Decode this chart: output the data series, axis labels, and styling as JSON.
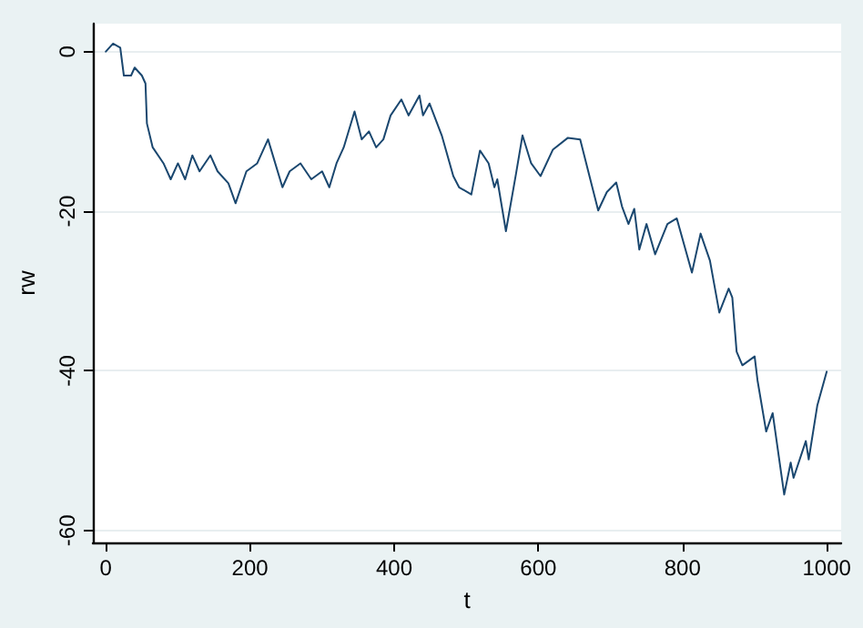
{
  "chart_data": {
    "type": "line",
    "xlabel": "t",
    "ylabel": "rw",
    "xlim": [
      -18,
      1020
    ],
    "ylim": [
      -61.5,
      3.5
    ],
    "xticks": [
      0,
      200,
      400,
      600,
      800,
      1000
    ],
    "yticks": [
      -60,
      -40,
      -20,
      0
    ],
    "grid": "y",
    "marker": "none",
    "line_style": "solid",
    "series": [
      {
        "color": "#1a476f",
        "x": [
          0,
          10,
          20,
          25,
          35,
          40,
          50,
          55,
          57,
          65,
          80,
          90,
          100,
          110,
          120,
          130,
          145,
          155,
          170,
          180,
          195,
          210,
          225,
          245,
          255,
          270,
          285,
          300,
          310,
          320,
          330,
          345,
          355,
          365,
          375,
          385,
          395,
          410,
          420,
          435,
          440,
          449,
          466,
          482,
          490,
          507,
          519,
          531,
          539,
          543,
          555,
          569,
          578,
          590,
          603,
          620,
          641,
          658,
          670,
          683,
          695,
          708,
          716,
          725,
          733,
          740,
          750,
          762,
          779,
          792,
          813,
          825,
          838,
          851,
          864,
          869,
          875,
          883,
          900,
          904,
          916,
          925,
          941,
          950,
          954,
          971,
          975,
          987,
          1000
        ],
        "values": [
          0,
          1,
          0.5,
          -3,
          -3,
          -2,
          -3,
          -4,
          -9,
          -12,
          -14,
          -16,
          -14,
          -16,
          -13,
          -15,
          -13,
          -15,
          -16.5,
          -19,
          -15,
          -14,
          -11,
          -17,
          -15,
          -14,
          -16,
          -15,
          -17,
          -14,
          -12,
          -7.5,
          -11,
          -10,
          -12,
          -11,
          -8,
          -6,
          -8,
          -5.5,
          -8,
          -6.5,
          -10.5,
          -15.6,
          -17,
          -17.9,
          -12.4,
          -14,
          -17,
          -16,
          -22.5,
          -15.3,
          -10.5,
          -14,
          -15.6,
          -12.3,
          -10.8,
          -11,
          -15.3,
          -19.9,
          -17.6,
          -16.4,
          -19.4,
          -21.6,
          -19.7,
          -24.8,
          -21.6,
          -25.4,
          -21.6,
          -20.9,
          -27.7,
          -22.8,
          -26.2,
          -32.7,
          -29.7,
          -30.8,
          -37.6,
          -39.3,
          -38.2,
          -41.2,
          -47.6,
          -45.3,
          -55.5,
          -51.5,
          -53.4,
          -48.8,
          -51.1,
          -44.3,
          -40.1
        ]
      }
    ]
  }
}
